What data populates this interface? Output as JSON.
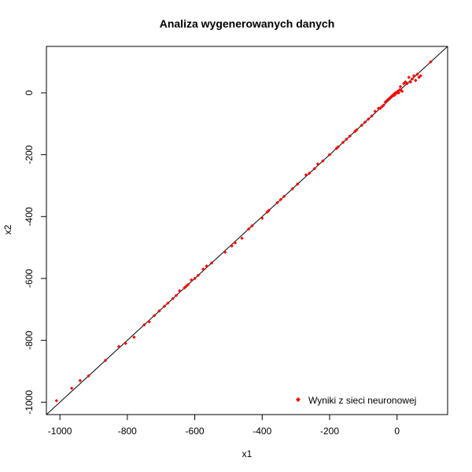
{
  "chart_data": {
    "type": "scatter",
    "title": "Analiza wygenerowanych danych",
    "xlabel": "x1",
    "ylabel": "x2",
    "xlim": [
      -1040,
      150
    ],
    "ylim": [
      -1040,
      150
    ],
    "x_ticks": [
      -1000,
      -800,
      -600,
      -400,
      -200,
      0
    ],
    "y_ticks": [
      -1000,
      -800,
      -600,
      -400,
      -200,
      0
    ],
    "x_tick_labels": [
      "-1000",
      "-800",
      "-600",
      "-400",
      "-200",
      "0"
    ],
    "y_tick_labels": [
      "-1000",
      "-800",
      "-600",
      "-400",
      "-200",
      "0"
    ],
    "grid": false,
    "legend_position": "bottom-right",
    "reference_line": {
      "slope": 1,
      "intercept": 0,
      "color": "#000000"
    },
    "series": [
      {
        "name": "Wyniki z sieci neuronowej",
        "color": "#ff0000",
        "marker": "diamond",
        "x": [
          -1010,
          -965,
          -940,
          -915,
          -865,
          -825,
          -805,
          -780,
          -750,
          -735,
          -720,
          -705,
          -690,
          -680,
          -665,
          -655,
          -645,
          -630,
          -625,
          -620,
          -610,
          -600,
          -590,
          -575,
          -565,
          -550,
          -510,
          -490,
          -480,
          -460,
          -440,
          -430,
          -400,
          -385,
          -380,
          -355,
          -345,
          -335,
          -310,
          -295,
          -270,
          -260,
          -245,
          -235,
          -220,
          -200,
          -180,
          -175,
          -160,
          -150,
          -140,
          -125,
          -120,
          -105,
          -95,
          -85,
          -75,
          -65,
          -55,
          -50,
          -45,
          -40,
          -35,
          -30,
          -25,
          -20,
          -15,
          -10,
          -8,
          -5,
          -3,
          0,
          2,
          5,
          8,
          10,
          12,
          15,
          20,
          25,
          30,
          35,
          40,
          45,
          50,
          55,
          60,
          65,
          70,
          100
        ],
        "y": [
          -995,
          -955,
          -930,
          -915,
          -865,
          -820,
          -810,
          -790,
          -750,
          -740,
          -720,
          -705,
          -690,
          -680,
          -665,
          -655,
          -640,
          -630,
          -625,
          -620,
          -605,
          -600,
          -590,
          -570,
          -560,
          -550,
          -515,
          -495,
          -485,
          -470,
          -440,
          -430,
          -405,
          -385,
          -380,
          -355,
          -345,
          -335,
          -310,
          -295,
          -265,
          -260,
          -245,
          -230,
          -220,
          -200,
          -180,
          -175,
          -160,
          -150,
          -140,
          -125,
          -120,
          -105,
          -95,
          -85,
          -75,
          -60,
          -50,
          -50,
          -45,
          -40,
          -30,
          -25,
          -20,
          -15,
          -10,
          -5,
          -8,
          0,
          -2,
          0,
          5,
          0,
          10,
          20,
          8,
          5,
          30,
          35,
          30,
          50,
          35,
          45,
          55,
          40,
          60,
          50,
          55,
          100
        ]
      }
    ]
  }
}
